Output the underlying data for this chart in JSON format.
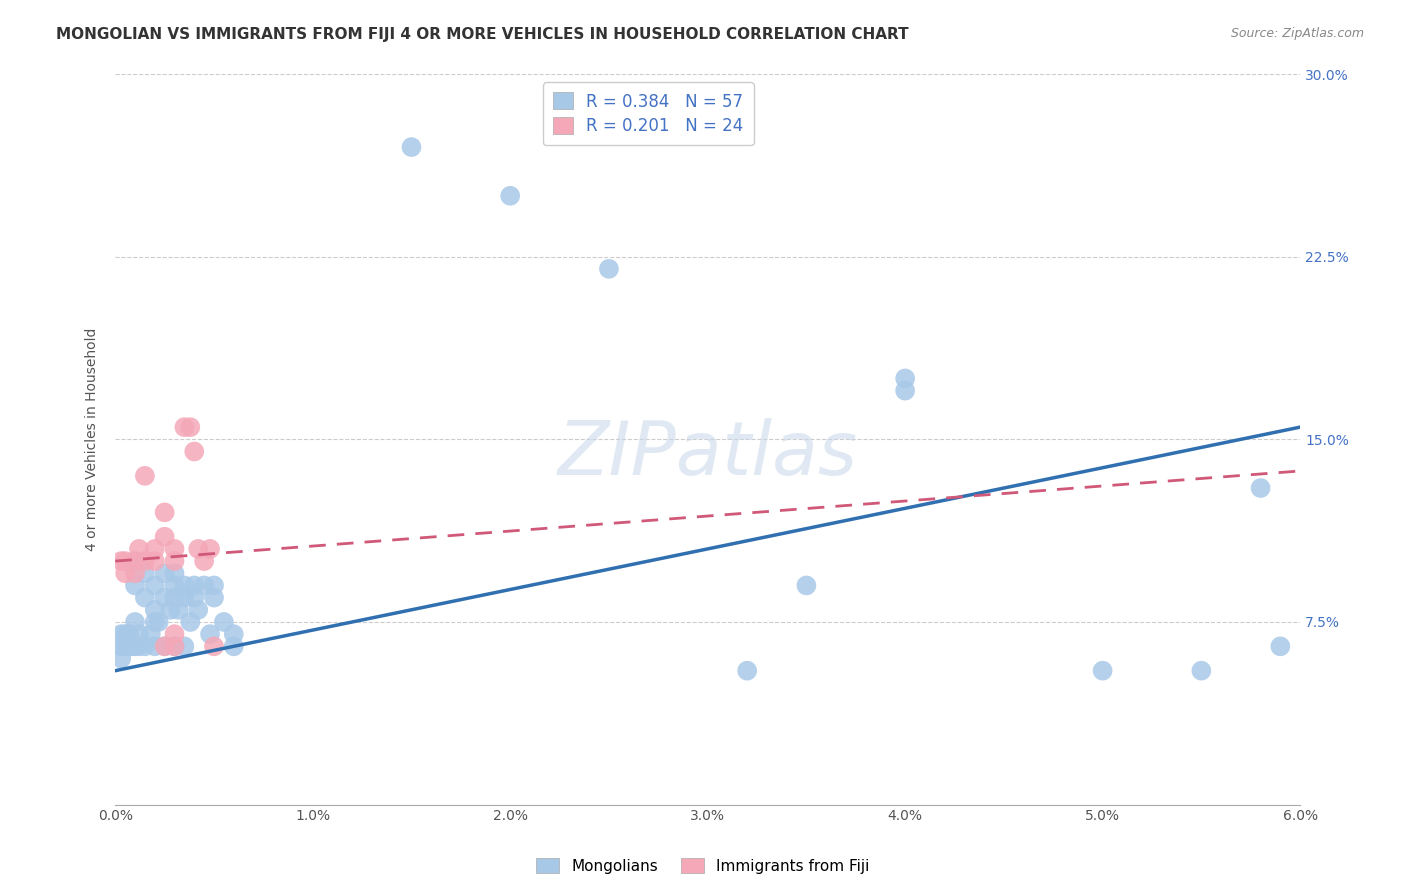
{
  "title": "MONGOLIAN VS IMMIGRANTS FROM FIJI 4 OR MORE VEHICLES IN HOUSEHOLD CORRELATION CHART",
  "source": "Source: ZipAtlas.com",
  "ylabel": "4 or more Vehicles in Household",
  "legend_label_blue": "Mongolians",
  "legend_label_pink": "Immigrants from Fiji",
  "r_blue": 0.384,
  "n_blue": 57,
  "r_pink": 0.201,
  "n_pink": 24,
  "xmin": 0.0,
  "xmax": 0.06,
  "ymin": 0.0,
  "ymax": 0.3,
  "xticks": [
    0.0,
    0.01,
    0.02,
    0.03,
    0.04,
    0.05,
    0.06
  ],
  "yticks": [
    0.0,
    0.075,
    0.15,
    0.225,
    0.3
  ],
  "xtick_labels": [
    "0.0%",
    "1.0%",
    "2.0%",
    "3.0%",
    "4.0%",
    "5.0%",
    "6.0%"
  ],
  "ytick_labels": [
    "",
    "7.5%",
    "15.0%",
    "22.5%",
    "30.0%"
  ],
  "color_blue": "#a8c8e8",
  "color_pink": "#f4a8b8",
  "color_blue_line": "#3070b0",
  "color_pink_line": "#d05878",
  "background_color": "#ffffff",
  "watermark": "ZIPatlas",
  "title_fontsize": 11,
  "label_fontsize": 10,
  "tick_fontsize": 10,
  "blue_points_x": [
    0.001,
    0.001,
    0.001,
    0.0015,
    0.0015,
    0.002,
    0.002,
    0.002,
    0.0025,
    0.0025,
    0.003,
    0.003,
    0.003,
    0.0035,
    0.0035,
    0.004,
    0.004,
    0.0045,
    0.005,
    0.005,
    0.0005,
    0.0005,
    0.001,
    0.0015,
    0.002,
    0.0025,
    0.003,
    0.0035,
    0.0007,
    0.0007,
    0.0003,
    0.0003,
    0.0003,
    0.0008,
    0.0012,
    0.0012,
    0.0018,
    0.0022,
    0.0028,
    0.0032,
    0.0038,
    0.0042,
    0.0048,
    0.0055,
    0.006,
    0.006,
    0.015,
    0.02,
    0.025,
    0.035,
    0.04,
    0.04,
    0.05,
    0.055,
    0.058,
    0.059,
    0.032
  ],
  "blue_points_y": [
    0.09,
    0.075,
    0.1,
    0.095,
    0.085,
    0.09,
    0.08,
    0.075,
    0.085,
    0.095,
    0.085,
    0.09,
    0.095,
    0.085,
    0.09,
    0.085,
    0.09,
    0.09,
    0.085,
    0.09,
    0.07,
    0.065,
    0.065,
    0.065,
    0.065,
    0.065,
    0.065,
    0.065,
    0.065,
    0.07,
    0.07,
    0.065,
    0.06,
    0.065,
    0.065,
    0.07,
    0.07,
    0.075,
    0.08,
    0.08,
    0.075,
    0.08,
    0.07,
    0.075,
    0.065,
    0.07,
    0.27,
    0.25,
    0.22,
    0.09,
    0.175,
    0.17,
    0.055,
    0.055,
    0.13,
    0.065,
    0.055
  ],
  "pink_points_x": [
    0.0003,
    0.0005,
    0.0005,
    0.001,
    0.001,
    0.0012,
    0.0015,
    0.0015,
    0.002,
    0.002,
    0.0025,
    0.0025,
    0.003,
    0.003,
    0.0035,
    0.0038,
    0.004,
    0.0042,
    0.0045,
    0.0048,
    0.005,
    0.0025,
    0.003,
    0.003
  ],
  "pink_points_y": [
    0.1,
    0.095,
    0.1,
    0.1,
    0.095,
    0.105,
    0.1,
    0.135,
    0.1,
    0.105,
    0.11,
    0.12,
    0.105,
    0.1,
    0.155,
    0.155,
    0.145,
    0.105,
    0.1,
    0.105,
    0.065,
    0.065,
    0.065,
    0.07
  ],
  "blue_line_x0": 0.0,
  "blue_line_y0": 0.055,
  "blue_line_x1": 0.06,
  "blue_line_y1": 0.155,
  "pink_line_x0": 0.0,
  "pink_line_y0": 0.1,
  "pink_line_x1": 0.06,
  "pink_line_y1": 0.137
}
